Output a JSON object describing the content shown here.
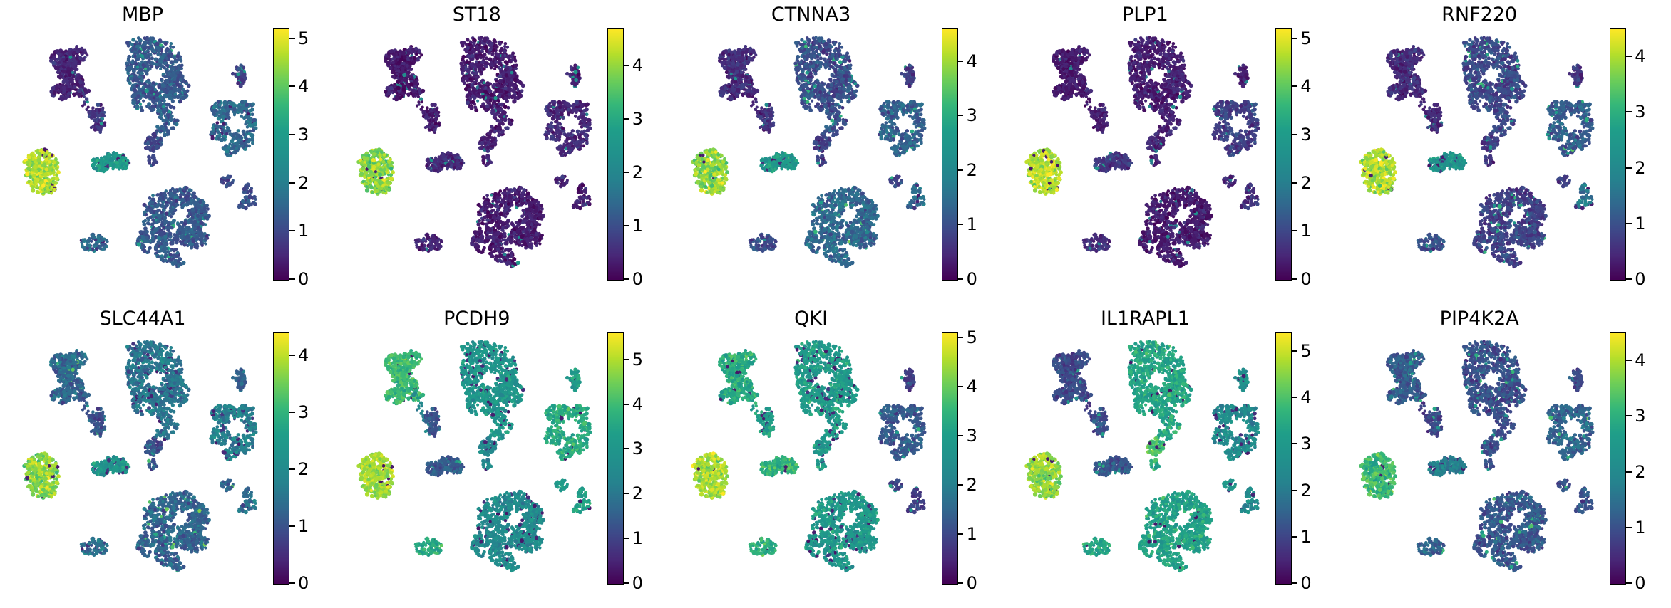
{
  "figure": {
    "background": "#ffffff",
    "description": "Grid of 10 UMAP feature plots (single-cell gene expression), viridis colormap, one colorbar per panel"
  },
  "chart_data": {
    "type": "scatter",
    "subtype": "umap-feature-plot-grid",
    "grid": {
      "rows": 2,
      "cols": 5
    },
    "colormap": "viridis",
    "colormap_stops": [
      "#440154",
      "#482878",
      "#3e4989",
      "#31688e",
      "#26828e",
      "#21918c",
      "#1f9e89",
      "#35b779",
      "#6ece58",
      "#b5de2b",
      "#fde725"
    ],
    "point_color_meaning": "expression level, 0 = dark purple, max = yellow",
    "clusters": [
      {
        "id": "hook-top-left",
        "blobs": [
          [
            92,
            84,
            20,
            15,
            120
          ],
          [
            100,
            118,
            17,
            17,
            110
          ],
          [
            85,
            130,
            13,
            10,
            50
          ],
          [
            109,
            77,
            13,
            11,
            55
          ],
          [
            94,
            100,
            15,
            12,
            70
          ],
          [
            116,
            128,
            7,
            7,
            18
          ]
        ],
        "holes": []
      },
      {
        "id": "trail-dots",
        "blobs": [
          [
            113,
            126,
            2.5,
            2.5,
            3
          ],
          [
            117,
            133,
            2,
            2,
            2
          ],
          [
            121,
            140,
            2.5,
            2.5,
            3
          ],
          [
            118,
            147,
            2,
            2,
            2
          ],
          [
            124,
            152,
            2,
            2,
            2
          ],
          [
            128,
            158,
            2.5,
            2.5,
            3
          ],
          [
            125,
            165,
            2,
            2,
            2
          ],
          [
            131,
            170,
            2,
            2,
            2
          ],
          [
            129,
            177,
            2,
            2,
            2
          ],
          [
            135,
            181,
            2.5,
            2.5,
            3
          ]
        ],
        "holes": []
      },
      {
        "id": "small-mid-left",
        "blobs": [
          [
            137,
            159,
            9,
            11,
            45
          ],
          [
            141,
            176,
            8,
            9,
            35
          ]
        ],
        "holes": []
      },
      {
        "id": "large-top-center",
        "blobs": [
          [
            218,
            100,
            41,
            44,
            430
          ],
          [
            200,
            64,
            22,
            12,
            60
          ],
          [
            248,
            123,
            16,
            22,
            90
          ],
          [
            208,
            140,
            24,
            16,
            90
          ],
          [
            190,
            95,
            14,
            20,
            60
          ],
          [
            232,
            157,
            13,
            12,
            45
          ],
          [
            239,
            171,
            9,
            9,
            25
          ],
          [
            228,
            184,
            11,
            7,
            22
          ]
        ],
        "holes": [
          [
            217,
            106,
            11
          ]
        ]
      },
      {
        "id": "small-below-center",
        "blobs": [
          [
            215,
            200,
            12,
            13,
            55
          ]
        ],
        "holes": []
      },
      {
        "id": "tiny-below-center",
        "blobs": [
          [
            214,
            224,
            6,
            8,
            16
          ]
        ],
        "holes": []
      },
      {
        "id": "clover-right",
        "blobs": [
          [
            314,
            154,
            18,
            14,
            95
          ],
          [
            344,
            154,
            13,
            12,
            60
          ],
          [
            309,
            184,
            14,
            14,
            65
          ],
          [
            339,
            196,
            16,
            13,
            70
          ],
          [
            324,
            210,
            11,
            8,
            30
          ],
          [
            352,
            174,
            9,
            10,
            30
          ]
        ],
        "holes": [
          [
            329,
            172,
            9
          ]
        ]
      },
      {
        "id": "mushroom-top-right",
        "blobs": [
          [
            338,
            104,
            10,
            11,
            40
          ],
          [
            338,
            118,
            4,
            5,
            8
          ]
        ],
        "holes": []
      },
      {
        "id": "bright-left-round",
        "blobs": [
          [
            59,
            241,
            23,
            31,
            300
          ],
          [
            70,
            262,
            10,
            10,
            30
          ],
          [
            45,
            225,
            10,
            10,
            30
          ]
        ],
        "holes": []
      },
      {
        "id": "elongated-middle",
        "blobs": [
          [
            143,
            230,
            14,
            11,
            70
          ],
          [
            161,
            225,
            15,
            11,
            70
          ],
          [
            173,
            231,
            9,
            8,
            30
          ]
        ],
        "holes": []
      },
      {
        "id": "large-bottom-center",
        "blobs": [
          [
            245,
            304,
            45,
            39,
            420
          ],
          [
            214,
            339,
            23,
            17,
            110
          ],
          [
            273,
            334,
            19,
            15,
            90
          ],
          [
            236,
            358,
            15,
            10,
            45
          ],
          [
            281,
            299,
            13,
            17,
            55
          ],
          [
            257,
            273,
            19,
            9,
            40
          ],
          [
            250,
            370,
            8,
            6,
            14
          ]
        ],
        "holes": [
          [
            253,
            302,
            10
          ]
        ]
      },
      {
        "id": "small-bottom-left",
        "blobs": [
          [
            132,
            342,
            19,
            12,
            80
          ]
        ],
        "holes": []
      },
      {
        "id": "tiny-right",
        "blobs": [
          [
            319,
            255,
            9,
            8,
            26
          ]
        ],
        "holes": []
      },
      {
        "id": "y-shape-right",
        "blobs": [
          [
            347,
            266,
            7,
            6,
            16
          ],
          [
            352,
            282,
            8,
            8,
            22
          ],
          [
            341,
            288,
            6,
            6,
            12
          ]
        ],
        "holes": []
      }
    ],
    "panels": [
      {
        "gene": "MBP",
        "colorbar_max": 5.2,
        "colorbar_ticks": [
          0,
          1,
          2,
          3,
          4,
          5
        ],
        "expression": [
          0.5,
          0.7,
          0.7,
          1.3,
          1.0,
          1.0,
          1.6,
          0.9,
          4.6,
          2.9,
          1.3,
          1.6,
          1.1,
          1.1
        ]
      },
      {
        "gene": "ST18",
        "colorbar_max": 4.7,
        "colorbar_ticks": [
          0,
          1,
          2,
          3,
          4
        ],
        "expression": [
          0.3,
          0.3,
          0.4,
          0.35,
          0.4,
          0.4,
          0.5,
          0.4,
          3.9,
          0.5,
          0.35,
          0.5,
          0.4,
          0.4
        ]
      },
      {
        "gene": "CTNNA3",
        "colorbar_max": 4.6,
        "colorbar_ticks": [
          0,
          1,
          2,
          3,
          4
        ],
        "expression": [
          0.5,
          0.5,
          0.6,
          1.0,
          0.8,
          0.8,
          1.3,
          0.8,
          3.9,
          2.6,
          1.4,
          1.0,
          0.9,
          1.5
        ]
      },
      {
        "gene": "PLP1",
        "colorbar_max": 5.2,
        "colorbar_ticks": [
          0,
          1,
          2,
          3,
          4,
          5
        ],
        "expression": [
          0.35,
          0.3,
          0.4,
          0.4,
          0.5,
          0.5,
          0.9,
          0.5,
          4.7,
          0.8,
          0.35,
          0.6,
          0.6,
          0.7
        ]
      },
      {
        "gene": "RNF220",
        "colorbar_max": 4.5,
        "colorbar_ticks": [
          0,
          1,
          2,
          3,
          4
        ],
        "expression": [
          0.5,
          0.5,
          0.5,
          0.9,
          0.7,
          0.7,
          1.2,
          0.7,
          4.0,
          2.4,
          0.8,
          1.0,
          0.8,
          1.6
        ]
      },
      {
        "gene": "SLC44A1",
        "colorbar_max": 4.4,
        "colorbar_ticks": [
          0,
          1,
          2,
          3,
          4
        ],
        "expression": [
          1.3,
          1.0,
          1.0,
          1.6,
          1.0,
          1.0,
          1.8,
          1.2,
          3.7,
          2.3,
          1.3,
          1.5,
          1.3,
          1.5
        ]
      },
      {
        "gene": "PCDH9",
        "colorbar_max": 5.6,
        "colorbar_ticks": [
          0,
          1,
          2,
          3,
          4,
          5
        ],
        "expression": [
          4.0,
          2.5,
          1.3,
          3.0,
          2.5,
          2.5,
          3.6,
          3.3,
          4.9,
          1.4,
          2.6,
          3.6,
          3.2,
          3.4
        ]
      },
      {
        "gene": "QKI",
        "colorbar_max": 5.1,
        "colorbar_ticks": [
          0,
          1,
          2,
          3,
          4,
          5
        ],
        "expression": [
          3.3,
          3.0,
          3.0,
          2.9,
          2.9,
          2.9,
          1.3,
          0.9,
          4.5,
          3.5,
          2.8,
          3.4,
          1.1,
          0.9
        ]
      },
      {
        "gene": "IL1RAPL1",
        "colorbar_max": 5.4,
        "colorbar_ticks": [
          0,
          1,
          2,
          3,
          4,
          5
        ],
        "expression": [
          1.1,
          1.0,
          1.2,
          3.4,
          4.0,
          3.5,
          2.5,
          2.7,
          4.6,
          1.3,
          3.3,
          3.4,
          2.8,
          2.5
        ]
      },
      {
        "gene": "PIP4K2A",
        "colorbar_max": 4.5,
        "colorbar_ticks": [
          0,
          1,
          2,
          3,
          4
        ],
        "expression": [
          1.2,
          0.8,
          0.9,
          1.0,
          1.0,
          1.0,
          1.3,
          0.9,
          3.2,
          1.8,
          1.1,
          1.3,
          1.0,
          1.1
        ]
      }
    ]
  }
}
